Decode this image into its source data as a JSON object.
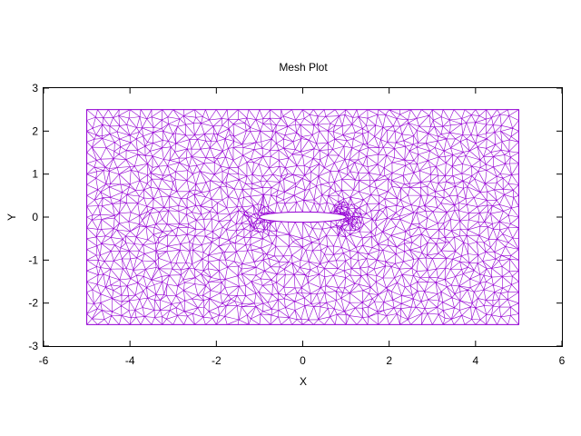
{
  "chart_data": {
    "type": "mesh",
    "title": "Mesh Plot",
    "xlabel": "X",
    "ylabel": "Y",
    "xlim": [
      -6,
      6
    ],
    "ylim": [
      -3,
      3
    ],
    "xticks": [
      -6,
      -4,
      -2,
      0,
      2,
      4,
      6
    ],
    "yticks": [
      -3,
      -2,
      -1,
      0,
      1,
      2,
      3
    ],
    "xtick_labels": [
      "-6",
      "-4",
      "-2",
      "0",
      "2",
      "4",
      "6"
    ],
    "ytick_labels": [
      "-3",
      "-2",
      "-1",
      "0",
      "1",
      "2",
      "3"
    ],
    "grid": false,
    "mesh_color": "#9400d3",
    "domain": {
      "x": [
        -5,
        5
      ],
      "y": [
        -2.5,
        2.5
      ]
    },
    "airfoil": {
      "leading_edge_x": -1,
      "trailing_edge_x": 1,
      "center_y": 0,
      "max_thickness": 0.24
    }
  }
}
